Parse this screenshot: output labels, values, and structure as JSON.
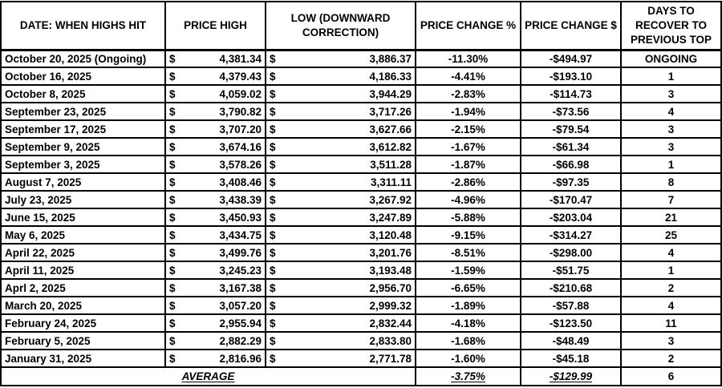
{
  "table": {
    "currency_symbol": "$",
    "headers": [
      "DATE: WHEN HIGHS HIT",
      "PRICE HIGH",
      "LOW (DOWNWARD CORRECTION)",
      "PRICE CHANGE %",
      "PRICE CHANGE $",
      "DAYS TO RECOVER TO PREVIOUS TOP"
    ],
    "rows": [
      {
        "date": "October 20, 2025 (Ongoing)",
        "high": "4,381.34",
        "low": "3,886.37",
        "pct": "-11.30%",
        "usd": "-$494.97",
        "days": "ONGOING"
      },
      {
        "date": "October 16, 2025",
        "high": "4,379.43",
        "low": "4,186.33",
        "pct": "-4.41%",
        "usd": "-$193.10",
        "days": "1"
      },
      {
        "date": "October 8, 2025",
        "high": "4,059.02",
        "low": "3,944.29",
        "pct": "-2.83%",
        "usd": "-$114.73",
        "days": "3"
      },
      {
        "date": "September 23, 2025",
        "high": "3,790.82",
        "low": "3,717.26",
        "pct": "-1.94%",
        "usd": "-$73.56",
        "days": "4"
      },
      {
        "date": "September 17, 2025",
        "high": "3,707.20",
        "low": "3,627.66",
        "pct": "-2.15%",
        "usd": "-$79.54",
        "days": "3"
      },
      {
        "date": "September 9, 2025",
        "high": "3,674.16",
        "low": "3,612.82",
        "pct": "-1.67%",
        "usd": "-$61.34",
        "days": "3"
      },
      {
        "date": "September 3, 2025",
        "high": "3,578.26",
        "low": "3,511.28",
        "pct": "-1.87%",
        "usd": "-$66.98",
        "days": "1"
      },
      {
        "date": "August 7, 2025",
        "high": "3,408.46",
        "low": "3,311.11",
        "pct": "-2.86%",
        "usd": "-$97.35",
        "days": "8"
      },
      {
        "date": "July 23, 2025",
        "high": "3,438.39",
        "low": "3,267.92",
        "pct": "-4.96%",
        "usd": "-$170.47",
        "days": "7"
      },
      {
        "date": "June 15, 2025",
        "high": "3,450.93",
        "low": "3,247.89",
        "pct": "-5.88%",
        "usd": "-$203.04",
        "days": "21"
      },
      {
        "date": "May 6, 2025",
        "high": "3,434.75",
        "low": "3,120.48",
        "pct": "-9.15%",
        "usd": "-$314.27",
        "days": "25"
      },
      {
        "date": "April 22, 2025",
        "high": "3,499.76",
        "low": "3,201.76",
        "pct": "-8.51%",
        "usd": "-$298.00",
        "days": "4"
      },
      {
        "date": "April 11, 2025",
        "high": "3,245.23",
        "low": "3,193.48",
        "pct": "-1.59%",
        "usd": "-$51.75",
        "days": "1"
      },
      {
        "date": "Aprl 2, 2025",
        "high": "3,167.38",
        "low": "2,956.70",
        "pct": "-6.65%",
        "usd": "-$210.68",
        "days": "2"
      },
      {
        "date": "March 20, 2025",
        "high": "3,057.20",
        "low": "2,999.32",
        "pct": "-1.89%",
        "usd": "-$57.88",
        "days": "4"
      },
      {
        "date": "February 24, 2025",
        "high": "2,955.94",
        "low": "2,832.44",
        "pct": "-4.18%",
        "usd": "-$123.50",
        "days": "11"
      },
      {
        "date": "February 5, 2025",
        "high": "2,882.29",
        "low": "2,833.80",
        "pct": "-1.68%",
        "usd": "-$48.49",
        "days": "3"
      },
      {
        "date": "January 31, 2025",
        "high": "2,816.96",
        "low": "2,771.78",
        "pct": "-1.60%",
        "usd": "-$45.18",
        "days": "2"
      }
    ],
    "average": {
      "label": "AVERAGE",
      "pct": "-3.75%",
      "usd": "-$129.99",
      "days": "6"
    }
  },
  "colors": {
    "text": "#000000",
    "border": "#000000",
    "background": "#ffffff"
  }
}
